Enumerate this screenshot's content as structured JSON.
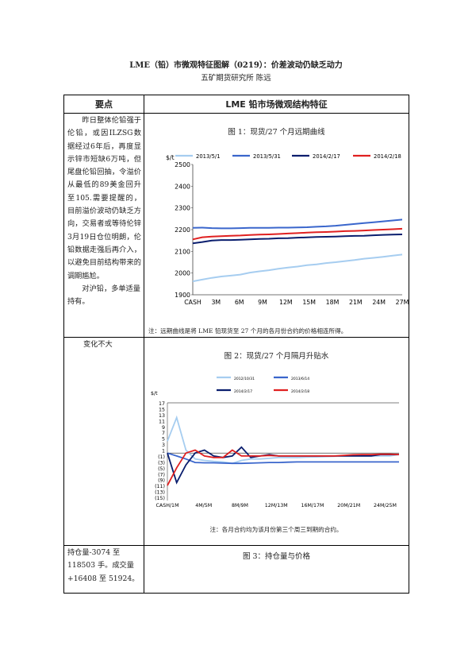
{
  "document": {
    "title": "LME（铅）市微观特征图解（0219）：价差波动仍缺乏动力",
    "author": "五矿期货研究所    陈远"
  },
  "table": {
    "header_left": "要点",
    "header_right": "LME 铅市场微观结构特征",
    "row1_left_p1": "昨日整体伦铅强于伦铅，或因ILZSG数据经过6年后，再度显示锌市短缺6万吨，但尾盘伦铅回抽，令溢价从最低的89美金回升至105.需要提醒的，目前溢价波动仍缺乏方向，交易者或等待伦锌3月19日仓位明朗，伦铅数据走强后再介入，以避免目前结构带来的调期尴尬。",
    "row1_left_p2": "对沪铅，多单适量持有。",
    "row2_left": "变化不大",
    "row3_left": "持仓量-3074 至118503 手。成交量+16408 至 51924。",
    "row3_right_title": "图 3：持仓量与价格"
  },
  "figure1": {
    "title": "图 1：现货/27 个月远期曲线",
    "note": "注：远期曲线是将 LME 铅现货至 27 个月的各月份合约的价格相连所得。"
  },
  "figure2": {
    "title": "图 2：现货/27 个月隔月升贴水",
    "note": "注：各月合约均为该月份第三个周三到期的合约。"
  },
  "chart_data": [
    {
      "type": "line",
      "ylabel": "$/t",
      "ylim": [
        1900,
        2500
      ],
      "yticks": [
        "1900",
        "2000",
        "2100",
        "2200",
        "2300",
        "2400",
        "2500"
      ],
      "tick_labels": [
        "CASH",
        "3M",
        "6M",
        "9M",
        "12M",
        "15M",
        "18M",
        "21M",
        "24M",
        "27M"
      ],
      "legend": "top",
      "series": [
        {
          "name": "2013/5/1",
          "color": "#a6cdf0",
          "values": [
            1962,
            1970,
            1978,
            1984,
            1988,
            1993,
            2002,
            2008,
            2013,
            2020,
            2025,
            2030,
            2036,
            2040,
            2046,
            2050,
            2055,
            2060,
            2066,
            2070,
            2075,
            2080,
            2085
          ]
        },
        {
          "name": "2013/5/31",
          "color": "#3a66cc",
          "values": [
            2208,
            2209,
            2207,
            2206,
            2206,
            2207,
            2208,
            2208,
            2208,
            2209,
            2209,
            2210,
            2211,
            2213,
            2215,
            2218,
            2222,
            2226,
            2230,
            2234,
            2238,
            2242,
            2246
          ]
        },
        {
          "name": "2014/2/17",
          "color": "#0a1e6e",
          "values": [
            2137,
            2143,
            2150,
            2152,
            2152,
            2153,
            2155,
            2157,
            2158,
            2160,
            2161,
            2163,
            2164,
            2166,
            2167,
            2168,
            2170,
            2171,
            2172,
            2174,
            2176,
            2177,
            2178
          ]
        },
        {
          "name": "2014/2/18",
          "color": "#e02020",
          "values": [
            2155,
            2165,
            2168,
            2170,
            2172,
            2173,
            2175,
            2177,
            2178,
            2180,
            2182,
            2184,
            2186,
            2188,
            2189,
            2191,
            2193,
            2194,
            2196,
            2198,
            2200,
            2202,
            2204
          ]
        }
      ]
    },
    {
      "type": "line",
      "ylabel": "$/t",
      "ylim": [
        -15,
        17
      ],
      "yticks": [
        "17",
        "15",
        "13",
        "11",
        "9",
        "7",
        "5",
        "3",
        "1",
        "(1)",
        "(3)",
        "(5)",
        "(7)",
        "(9)",
        "(11)",
        "(13)",
        "(15)"
      ],
      "tick_labels": [
        "CASH/1M",
        "4M/5M",
        "8M/9M",
        "12M/13M",
        "16M/17M",
        "20M/21M",
        "24M/25M"
      ],
      "legend": "top",
      "series": [
        {
          "name": "2012/10/31",
          "color": "#a6cdf0",
          "values": [
            4,
            12,
            1,
            -2,
            -2.5,
            -2.8,
            -3,
            -3.5,
            -2.5,
            -2,
            -2,
            -1.8,
            -1.5,
            -1.5,
            -1.5,
            -1.4,
            -1.3,
            -1.2,
            -1.1,
            -1,
            -1,
            -1,
            -1,
            -1,
            -1,
            -0.5
          ]
        },
        {
          "name": "2013/6/14",
          "color": "#3a66cc",
          "values": [
            0,
            -1,
            -2,
            -3.2,
            -3.3,
            -3.3,
            -3.4,
            -3.5,
            -3.5,
            -3.4,
            -3.3,
            -3.2,
            -3.2,
            -3.1,
            -3,
            -3,
            -3,
            -3,
            -3,
            -3,
            -3,
            -3,
            -3,
            -3,
            -3,
            -3
          ]
        },
        {
          "name": "2014/2/17",
          "color": "#0a1e6e",
          "values": [
            0,
            -10,
            -4,
            0,
            1,
            -1,
            -1.5,
            -1,
            2,
            -1.5,
            -1,
            -0.5,
            -1,
            -1,
            -1,
            -1,
            -1,
            -1,
            -1,
            -1,
            -1,
            -1,
            -1,
            -0.5,
            -0.5,
            -0.5
          ]
        },
        {
          "name": "2014/2/18",
          "color": "#e02020",
          "values": [
            -11,
            -5,
            0,
            1,
            -1,
            -1.5,
            -1.5,
            1,
            -1,
            -1,
            -1,
            -0.8,
            -1,
            -1,
            -1,
            -1,
            -1,
            -1,
            -1,
            -0.8,
            -0.6,
            -0.5,
            -0.5,
            -0.4,
            -0.4,
            -0.5
          ]
        }
      ]
    }
  ]
}
